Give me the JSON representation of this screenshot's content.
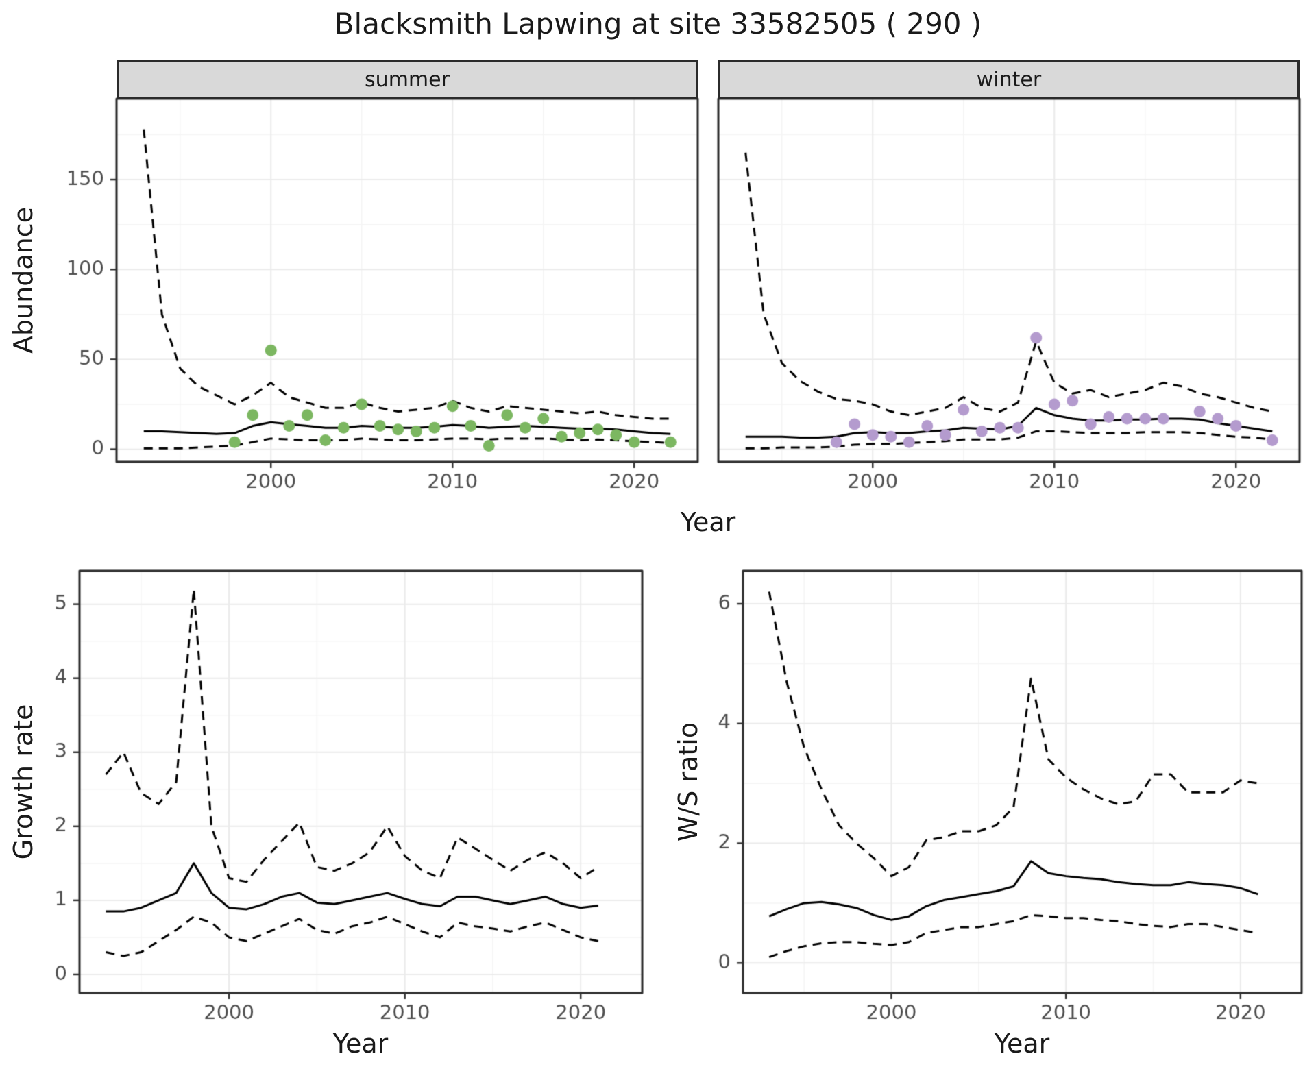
{
  "title": "Blacksmith Lapwing at site 33582505 ( 290 )",
  "facets": [
    "summer",
    "winter"
  ],
  "axis_labels": {
    "y_top": "Abundance",
    "x_top": "Year",
    "y_bottom_left": "Growth rate",
    "x_bottom_left": "Year",
    "y_bottom_right": "W/S ratio",
    "x_bottom_right": "Year"
  },
  "colors": {
    "summer_points": "#7cb761",
    "winter_points": "#b49bce",
    "line": "#000000",
    "strip_bg": "#d9d9d9",
    "panel_border": "#2b2b2b",
    "grid_major": "#ebebeb",
    "grid_minor": "#f5f5f5",
    "tick_label": "#4d4d4d",
    "tick_mark": "#333333"
  },
  "chart_data": [
    {
      "id": "abundance-summer",
      "type": "line",
      "facet_label": "summer",
      "ylabel": "Abundance",
      "xlabel": "Year",
      "xlim": [
        1991.5,
        2023.5
      ],
      "ylim": [
        -7,
        195
      ],
      "xticks": [
        2000,
        2010,
        2020
      ],
      "yticks": [
        0,
        50,
        100,
        150
      ],
      "years": [
        1993,
        1994,
        1995,
        1996,
        1997,
        1998,
        1999,
        2000,
        2001,
        2002,
        2003,
        2004,
        2005,
        2006,
        2007,
        2008,
        2009,
        2010,
        2011,
        2012,
        2013,
        2014,
        2015,
        2016,
        2017,
        2018,
        2019,
        2020,
        2021,
        2022
      ],
      "fit": [
        10,
        10,
        9.5,
        9,
        8.5,
        9,
        13,
        15,
        14,
        13,
        12,
        12,
        13,
        12.5,
        12,
        12,
        12.5,
        13.5,
        13,
        12,
        12.5,
        13,
        12.5,
        12,
        11.5,
        11.5,
        11,
        10,
        9,
        8.5
      ],
      "upper": [
        178,
        75,
        45,
        35,
        30,
        25,
        30,
        37,
        29,
        26,
        23,
        23,
        26,
        23,
        21,
        22,
        23,
        27,
        23,
        21,
        24,
        23,
        22,
        21,
        20,
        21,
        19,
        18,
        17,
        17
      ],
      "lower": [
        0.5,
        0.5,
        0.5,
        1,
        1.5,
        2,
        4,
        6,
        5.5,
        5,
        5,
        5,
        6,
        5.5,
        5,
        5,
        5.5,
        6,
        6,
        5.5,
        6,
        6,
        6,
        5.5,
        5,
        5.5,
        5,
        4.5,
        4,
        3.5
      ],
      "points": {
        "years": [
          1998,
          1999,
          2000,
          2001,
          2002,
          2003,
          2004,
          2005,
          2006,
          2007,
          2008,
          2009,
          2010,
          2011,
          2012,
          2013,
          2014,
          2015,
          2016,
          2017,
          2018,
          2019,
          2020,
          2022
        ],
        "values": [
          4,
          19,
          55,
          13,
          19,
          5,
          12,
          25,
          13,
          11,
          10,
          12,
          24,
          13,
          2,
          19,
          12,
          17,
          7,
          9,
          11,
          8,
          4,
          4
        ]
      },
      "point_color": "#7cb761"
    },
    {
      "id": "abundance-winter",
      "type": "line",
      "facet_label": "winter",
      "ylabel": "Abundance",
      "xlabel": "Year",
      "xlim": [
        1991.5,
        2023.5
      ],
      "ylim": [
        -7,
        195
      ],
      "xticks": [
        2000,
        2010,
        2020
      ],
      "yticks": [
        0,
        50,
        100,
        150
      ],
      "years": [
        1993,
        1994,
        1995,
        1996,
        1997,
        1998,
        1999,
        2000,
        2001,
        2002,
        2003,
        2004,
        2005,
        2006,
        2007,
        2008,
        2009,
        2010,
        2011,
        2012,
        2013,
        2014,
        2015,
        2016,
        2017,
        2018,
        2019,
        2020,
        2021,
        2022
      ],
      "fit": [
        7,
        7,
        7,
        6.5,
        6.5,
        7,
        9,
        9.5,
        9,
        9,
        10,
        10.5,
        12,
        11.5,
        11,
        13,
        23,
        19,
        17,
        16,
        16,
        16.5,
        16.5,
        17,
        17,
        16.5,
        14.5,
        13,
        11.5,
        10
      ],
      "upper": [
        165,
        75,
        48,
        38,
        32,
        28,
        27,
        25,
        21,
        19,
        21,
        23,
        29,
        23,
        21,
        26,
        60,
        37,
        31,
        33,
        29,
        31,
        33,
        37,
        35,
        31,
        29,
        26,
        23,
        21
      ],
      "lower": [
        0.5,
        0.5,
        1,
        1,
        1,
        1.5,
        2.5,
        3,
        3,
        3.5,
        4,
        4.5,
        5.5,
        5.5,
        5.5,
        6.5,
        10,
        10,
        9.5,
        9,
        9,
        9,
        9.5,
        9.5,
        9.5,
        9,
        8,
        7,
        6.5,
        5.5
      ],
      "points": {
        "years": [
          1998,
          1999,
          2000,
          2001,
          2002,
          2003,
          2004,
          2005,
          2006,
          2007,
          2008,
          2009,
          2010,
          2011,
          2012,
          2013,
          2014,
          2015,
          2016,
          2018,
          2019,
          2020,
          2022
        ],
        "values": [
          4,
          14,
          8,
          7,
          4,
          13,
          8,
          22,
          10,
          12,
          12,
          62,
          25,
          27,
          14,
          18,
          17,
          17,
          17,
          21,
          17,
          13,
          5
        ]
      },
      "point_color": "#b49bce"
    },
    {
      "id": "growth-rate",
      "type": "line",
      "facet_label": null,
      "ylabel": "Growth rate",
      "xlabel": "Year",
      "xlim": [
        1991.5,
        2023.5
      ],
      "ylim": [
        -0.25,
        5.45
      ],
      "xticks": [
        2000,
        2010,
        2020
      ],
      "yticks": [
        0,
        1,
        2,
        3,
        4,
        5
      ],
      "years": [
        1993,
        1994,
        1995,
        1996,
        1997,
        1998,
        1999,
        2000,
        2001,
        2002,
        2003,
        2004,
        2005,
        2006,
        2007,
        2008,
        2009,
        2010,
        2011,
        2012,
        2013,
        2014,
        2015,
        2016,
        2017,
        2018,
        2019,
        2020,
        2021
      ],
      "fit": [
        0.85,
        0.85,
        0.9,
        1.0,
        1.1,
        1.5,
        1.1,
        0.9,
        0.88,
        0.95,
        1.05,
        1.1,
        0.97,
        0.95,
        1.0,
        1.05,
        1.1,
        1.02,
        0.95,
        0.92,
        1.05,
        1.05,
        1.0,
        0.95,
        1.0,
        1.05,
        0.95,
        0.9,
        0.93
      ],
      "upper": [
        2.7,
        3.0,
        2.45,
        2.3,
        2.6,
        5.2,
        2.0,
        1.3,
        1.25,
        1.55,
        1.8,
        2.05,
        1.45,
        1.4,
        1.5,
        1.65,
        2.0,
        1.6,
        1.4,
        1.3,
        1.85,
        1.7,
        1.55,
        1.4,
        1.55,
        1.65,
        1.5,
        1.3,
        1.45
      ],
      "lower": [
        0.3,
        0.25,
        0.3,
        0.45,
        0.6,
        0.78,
        0.7,
        0.5,
        0.45,
        0.55,
        0.65,
        0.75,
        0.6,
        0.55,
        0.65,
        0.7,
        0.78,
        0.68,
        0.58,
        0.5,
        0.7,
        0.65,
        0.62,
        0.58,
        0.65,
        0.7,
        0.6,
        0.5,
        0.45
      ],
      "points": null,
      "point_color": null
    },
    {
      "id": "ws-ratio",
      "type": "line",
      "facet_label": null,
      "ylabel": "W/S ratio",
      "xlabel": "Year",
      "xlim": [
        1991.5,
        2023.5
      ],
      "ylim": [
        -0.5,
        6.55
      ],
      "xticks": [
        2000,
        2010,
        2020
      ],
      "yticks": [
        0,
        2,
        4,
        6
      ],
      "years": [
        1993,
        1994,
        1995,
        1996,
        1997,
        1998,
        1999,
        2000,
        2001,
        2002,
        2003,
        2004,
        2005,
        2006,
        2007,
        2008,
        2009,
        2010,
        2011,
        2012,
        2013,
        2014,
        2015,
        2016,
        2017,
        2018,
        2019,
        2020,
        2021
      ],
      "fit": [
        0.78,
        0.9,
        1.0,
        1.02,
        0.98,
        0.92,
        0.8,
        0.72,
        0.78,
        0.95,
        1.05,
        1.1,
        1.15,
        1.2,
        1.28,
        1.7,
        1.5,
        1.45,
        1.42,
        1.4,
        1.35,
        1.32,
        1.3,
        1.3,
        1.35,
        1.32,
        1.3,
        1.25,
        1.15
      ],
      "upper": [
        6.2,
        4.7,
        3.6,
        2.9,
        2.3,
        2.0,
        1.75,
        1.45,
        1.6,
        2.05,
        2.1,
        2.2,
        2.2,
        2.3,
        2.6,
        4.75,
        3.4,
        3.1,
        2.9,
        2.75,
        2.65,
        2.7,
        3.15,
        3.15,
        2.85,
        2.85,
        2.85,
        3.05,
        3.0
      ],
      "lower": [
        0.1,
        0.2,
        0.28,
        0.33,
        0.35,
        0.35,
        0.32,
        0.3,
        0.35,
        0.5,
        0.55,
        0.6,
        0.6,
        0.65,
        0.7,
        0.8,
        0.78,
        0.75,
        0.75,
        0.72,
        0.7,
        0.65,
        0.62,
        0.6,
        0.65,
        0.65,
        0.6,
        0.55,
        0.5
      ],
      "points": null,
      "point_color": null
    }
  ]
}
